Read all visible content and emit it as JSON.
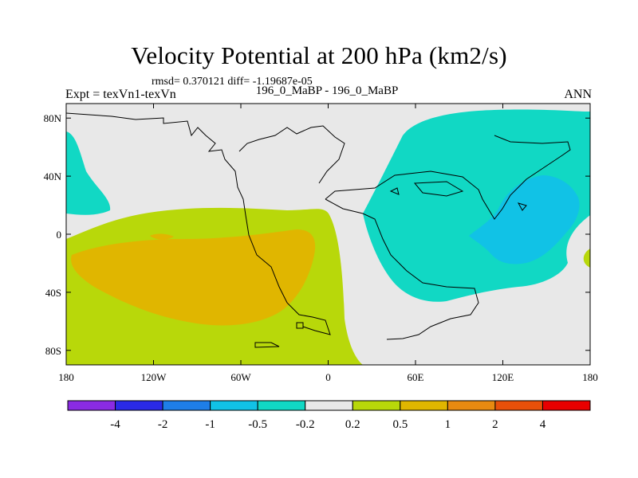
{
  "header": {
    "title": "Velocity Potential at 200 hPa (km2/s)",
    "stats": "rmsd= 0.370121 diff= -1.19687e-05",
    "left": "Expt = texVn1-texVn",
    "center": "196_0_MaBP - 196_0_MaBP",
    "right": "ANN"
  },
  "chart_data": {
    "type": "heatmap",
    "title": "Velocity Potential at 200 hPa (km2/s)",
    "xlabel": "",
    "ylabel": "",
    "xlim": [
      -180,
      180
    ],
    "ylim": [
      -90,
      90
    ],
    "x_ticks": [
      {
        "value": -180,
        "label": "180"
      },
      {
        "value": -120,
        "label": "120W"
      },
      {
        "value": -60,
        "label": "60W"
      },
      {
        "value": 0,
        "label": "0"
      },
      {
        "value": 60,
        "label": "60E"
      },
      {
        "value": 120,
        "label": "120E"
      },
      {
        "value": 180,
        "label": "180"
      }
    ],
    "y_ticks": [
      {
        "value": 80,
        "label": "80N"
      },
      {
        "value": 40,
        "label": "40N"
      },
      {
        "value": 0,
        "label": "0"
      },
      {
        "value": -40,
        "label": "40S"
      },
      {
        "value": -80,
        "label": "80S"
      }
    ],
    "colorbar": {
      "colors": [
        "#8a2be2",
        "#2a2ae6",
        "#1e7ee8",
        "#11c2e6",
        "#11d8c4",
        "#e8e8e8",
        "#b8d80a",
        "#e0b600",
        "#e88a10",
        "#e8500a",
        "#e80000"
      ],
      "labels": [
        "-4",
        "-2",
        "-1",
        "-0.5",
        "-0.2",
        "0.2",
        "0.5",
        "1",
        "2",
        "4"
      ]
    },
    "regions": [
      {
        "name": "positive-region-west",
        "level": "0.2 to 0.5",
        "color": "#b8d80a"
      },
      {
        "name": "positive-core-west",
        "level": "0.5 to 1",
        "color": "#e0b600"
      },
      {
        "name": "negative-region-east",
        "level": "-0.5 to -0.2",
        "color": "#11d8c4"
      },
      {
        "name": "negative-core-east",
        "level": "-1 to -0.5",
        "color": "#11c2e6"
      }
    ]
  }
}
